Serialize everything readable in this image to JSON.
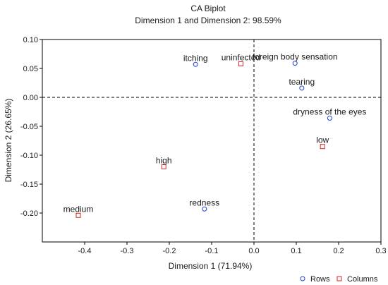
{
  "chart_data": {
    "type": "scatter",
    "title": "CA Biplot",
    "subtitle": "Dimension 1 and Dimension 2: 98.59%",
    "xlabel": "Dimension 1 (71.94%)",
    "ylabel": "Dimension 2 (26.65%)",
    "xlim": [
      -0.5,
      0.3
    ],
    "ylim": [
      -0.25,
      0.1
    ],
    "x_ticks": [
      -0.4,
      -0.3,
      -0.2,
      -0.1,
      0.0,
      0.1,
      0.2,
      0.3
    ],
    "x_tick_labels": [
      "-0.4",
      "-0.3",
      "-0.2",
      "-0.1",
      "0.0",
      "0.1",
      "0.2",
      "0.3"
    ],
    "y_ticks": [
      0.1,
      0.05,
      0.0,
      -0.05,
      -0.1,
      -0.15,
      -0.2
    ],
    "y_tick_labels": [
      "0.10",
      "0.05",
      "0.00",
      "-0.05",
      "-0.10",
      "-0.15",
      "-0.20"
    ],
    "reference_lines": {
      "x": 0,
      "y": 0,
      "style": "dashed"
    },
    "grid": false,
    "legend_position": "bottom-right",
    "series": [
      {
        "name": "Rows",
        "marker": "circle",
        "color": "#1f3fd6",
        "points": [
          {
            "label": "itching",
            "x": -0.138,
            "y": 0.057
          },
          {
            "label": "foreign body sensation",
            "x": 0.097,
            "y": 0.059
          },
          {
            "label": "tearing",
            "x": 0.113,
            "y": 0.016
          },
          {
            "label": "dryness of the eyes",
            "x": 0.179,
            "y": -0.036
          },
          {
            "label": "redness",
            "x": -0.117,
            "y": -0.193
          }
        ]
      },
      {
        "name": "Columns",
        "marker": "square",
        "color": "#e02020",
        "points": [
          {
            "label": "uninfected",
            "x": -0.031,
            "y": 0.058
          },
          {
            "label": "low",
            "x": 0.162,
            "y": -0.085
          },
          {
            "label": "high",
            "x": -0.213,
            "y": -0.12
          },
          {
            "label": "medium",
            "x": -0.415,
            "y": -0.204
          }
        ]
      }
    ]
  }
}
